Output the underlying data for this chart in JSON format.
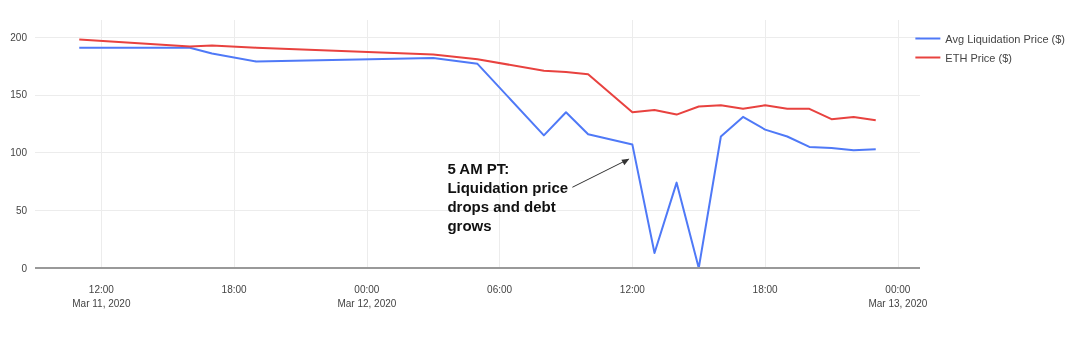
{
  "chart_data": {
    "type": "line",
    "xlim": [
      "2020-03-11T09:00",
      "2020-03-13T01:00"
    ],
    "xticks": [
      {
        "value": "2020-03-11T12:00",
        "label": "12:00\nMar 11, 2020"
      },
      {
        "value": "2020-03-11T18:00",
        "label": "18:00"
      },
      {
        "value": "2020-03-12T00:00",
        "label": "00:00\nMar 12, 2020"
      },
      {
        "value": "2020-03-12T06:00",
        "label": "06:00"
      },
      {
        "value": "2020-03-12T12:00",
        "label": "12:00"
      },
      {
        "value": "2020-03-12T18:00",
        "label": "18:00"
      },
      {
        "value": "2020-03-13T00:00",
        "label": "00:00\nMar 13, 2020"
      }
    ],
    "ylim": [
      0,
      215
    ],
    "yticks": [
      0,
      50,
      100,
      150,
      200
    ],
    "grid": true,
    "legend": "top right",
    "x": [
      "2020-03-11T11:00",
      "2020-03-11T16:00",
      "2020-03-11T17:00",
      "2020-03-11T19:00",
      "2020-03-12T03:00",
      "2020-03-12T05:00",
      "2020-03-12T08:00",
      "2020-03-12T09:00",
      "2020-03-12T10:00",
      "2020-03-12T12:00",
      "2020-03-12T13:00",
      "2020-03-12T14:00",
      "2020-03-12T15:00",
      "2020-03-12T16:00",
      "2020-03-12T17:00",
      "2020-03-12T18:00",
      "2020-03-12T19:00",
      "2020-03-12T20:00",
      "2020-03-12T21:00",
      "2020-03-12T22:00",
      "2020-03-12T23:00"
    ],
    "series": [
      {
        "name": "Avg Liquidation Price ($)",
        "color": "#4f79f7",
        "values": [
          191,
          191,
          186,
          179,
          182,
          177,
          115,
          135,
          116,
          107,
          13,
          74,
          0,
          114,
          131,
          120,
          114,
          105,
          104,
          102,
          103
        ]
      },
      {
        "name": "ETH Price ($)",
        "color": "#e8423f",
        "values": [
          198,
          192,
          193,
          191,
          185,
          181,
          171,
          170,
          168,
          135,
          137,
          133,
          140,
          141,
          138,
          141,
          138,
          138,
          129,
          131,
          128
        ]
      }
    ],
    "annotations": [
      {
        "text": "5 AM PT: Liquidation price drops and debt grows",
        "x": "2020-03-12T12:00",
        "y": 96
      }
    ]
  }
}
